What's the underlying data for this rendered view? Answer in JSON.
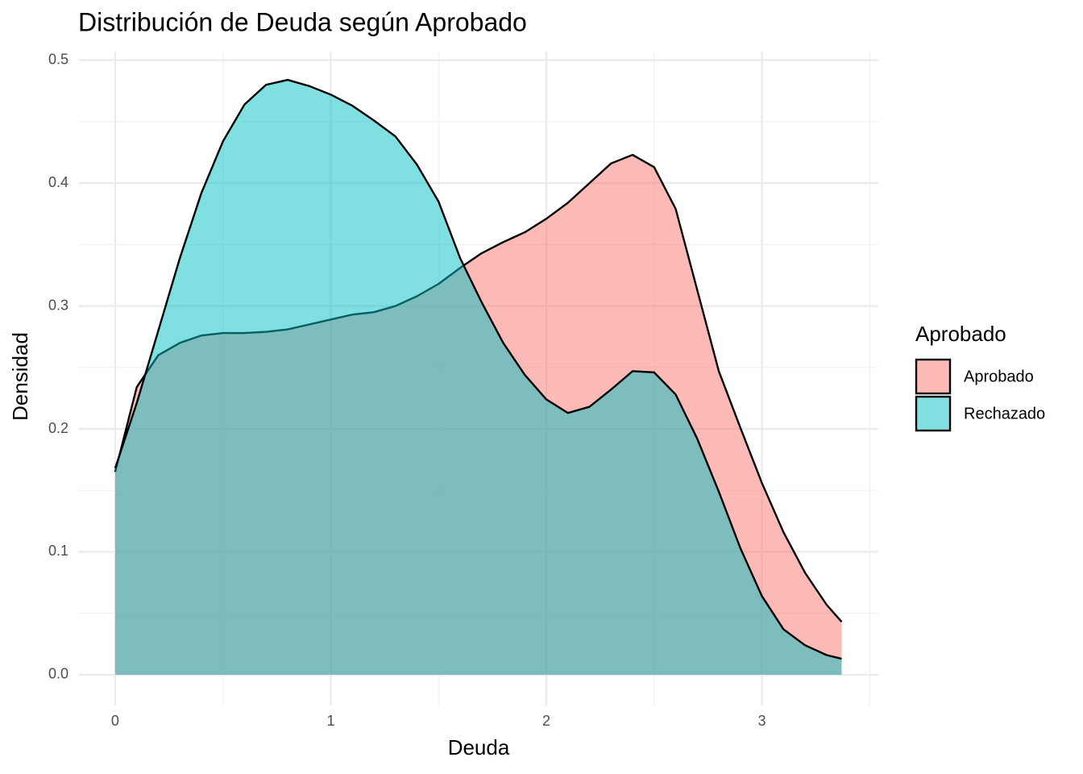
{
  "chart_data": {
    "type": "area",
    "title": "Distribución de Deuda según Aprobado",
    "x_label": "Deuda",
    "y_label": "Densidad",
    "legend_title": "Aprobado",
    "legend_position": "right",
    "grid": true,
    "x": [
      0,
      0.1,
      0.2,
      0.3,
      0.4,
      0.5,
      0.6,
      0.7,
      0.8,
      0.9,
      1.0,
      1.1,
      1.2,
      1.3,
      1.4,
      1.5,
      1.6,
      1.7,
      1.8,
      1.9,
      2.0,
      2.1,
      2.2,
      2.3,
      2.4,
      2.5,
      2.6,
      2.7,
      2.8,
      2.9,
      3.0,
      3.1,
      3.2,
      3.3,
      3.37
    ],
    "series": [
      {
        "name": "Aprobado",
        "color": "#F8766D",
        "values": [
          0.165,
          0.234,
          0.26,
          0.27,
          0.276,
          0.278,
          0.278,
          0.279,
          0.281,
          0.285,
          0.289,
          0.293,
          0.295,
          0.3,
          0.308,
          0.318,
          0.331,
          0.343,
          0.352,
          0.36,
          0.371,
          0.384,
          0.4,
          0.416,
          0.423,
          0.413,
          0.379,
          0.313,
          0.247,
          0.201,
          0.156,
          0.116,
          0.083,
          0.057,
          0.043
        ]
      },
      {
        "name": "Rechazado",
        "color": "#00BFC4",
        "values": [
          0.168,
          0.221,
          0.28,
          0.339,
          0.392,
          0.434,
          0.464,
          0.48,
          0.484,
          0.479,
          0.472,
          0.463,
          0.451,
          0.438,
          0.415,
          0.385,
          0.339,
          0.303,
          0.27,
          0.244,
          0.224,
          0.213,
          0.218,
          0.232,
          0.247,
          0.246,
          0.228,
          0.192,
          0.149,
          0.103,
          0.064,
          0.037,
          0.024,
          0.016,
          0.013
        ]
      }
    ],
    "xlim": [
      -0.168,
      3.54
    ],
    "ylim": [
      -0.025,
      0.507
    ],
    "xticks": [
      0,
      1,
      2,
      3
    ],
    "yticks": [
      {
        "value": 0,
        "label": "0.0"
      },
      0.1,
      0.2,
      0.3,
      0.4,
      0.5
    ]
  }
}
